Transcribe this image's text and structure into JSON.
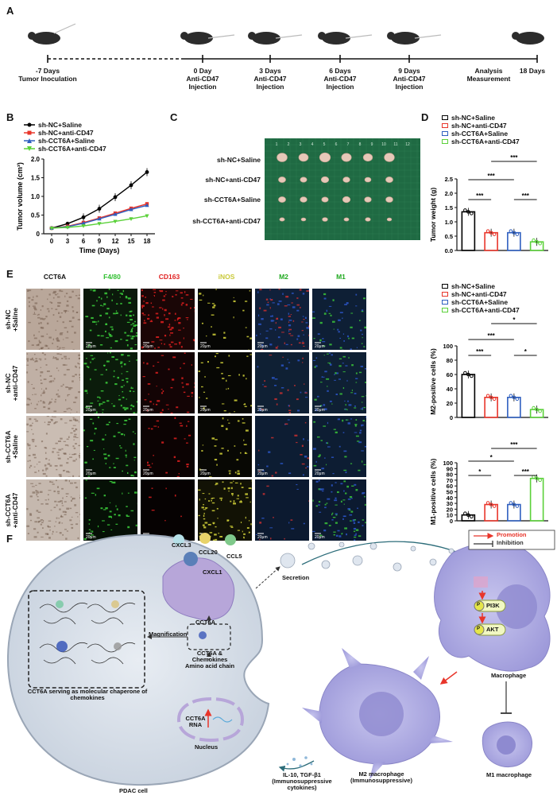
{
  "panel_letters": {
    "a": "A",
    "b": "B",
    "c": "C",
    "d": "D",
    "e": "E",
    "f": "F"
  },
  "timeline": {
    "events": [
      {
        "day": "-7 Days",
        "label": "Tumor Inoculation"
      },
      {
        "day": "0 Day",
        "label": "Anti-CD47 Injection"
      },
      {
        "day": "3 Days",
        "label": "Anti-CD47 Injection"
      },
      {
        "day": "6 Days",
        "label": "Anti-CD47 Injection"
      },
      {
        "day": "9 Days",
        "label": "Anti-CD47 Injection"
      },
      {
        "day": "Analysis",
        "label": "Measurement"
      },
      {
        "day": "18 Days",
        "label": ""
      }
    ]
  },
  "groups": [
    "sh-NC+Saline",
    "sh-NC+anti-CD47",
    "sh-CCT6A+Saline",
    "sh-CCT6A+anti-CD47"
  ],
  "colors": {
    "g1": "#000000",
    "g2": "#e8352a",
    "g3": "#2f5fbf",
    "g4": "#5bd13a"
  },
  "chart_data": [
    {
      "type": "line",
      "ylabel": "Tumor volume (cm³)",
      "xlabel": "Time (Days)",
      "x": [
        0,
        3,
        6,
        9,
        12,
        15,
        18
      ],
      "ylim": [
        0,
        2.0
      ],
      "yticks": [
        "0",
        "0.5",
        "1.0",
        "1.5",
        "2.0"
      ],
      "series": [
        {
          "name": "sh-NC+Saline",
          "values": [
            0.15,
            0.27,
            0.44,
            0.67,
            0.98,
            1.3,
            1.65
          ]
        },
        {
          "name": "sh-NC+anti-CD47",
          "values": [
            0.15,
            0.2,
            0.3,
            0.42,
            0.55,
            0.68,
            0.8
          ]
        },
        {
          "name": "sh-CCT6A+Saline",
          "values": [
            0.15,
            0.19,
            0.28,
            0.4,
            0.52,
            0.65,
            0.76
          ]
        },
        {
          "name": "sh-CCT6A+anti-CD47",
          "values": [
            0.15,
            0.17,
            0.21,
            0.27,
            0.33,
            0.4,
            0.48
          ]
        }
      ]
    },
    {
      "type": "bar",
      "ylabel": "Tumor weight (g)",
      "categories": [
        "sh-NC+Saline",
        "sh-NC+anti-CD47",
        "sh-CCT6A+Saline",
        "sh-CCT6A+anti-CD47"
      ],
      "values": [
        1.35,
        0.62,
        0.62,
        0.3
      ],
      "ylim": [
        0,
        2.5
      ],
      "yticks": [
        "0.0",
        "0.5",
        "1.0",
        "1.5",
        "2.0",
        "2.5"
      ],
      "significance": [
        "***",
        "***",
        "***",
        "***"
      ]
    },
    {
      "type": "bar",
      "ylabel": "M2-positive cells (%)",
      "categories": [
        "sh-NC+Saline",
        "sh-NC+anti-CD47",
        "sh-CCT6A+Saline",
        "sh-CCT6A+anti-CD47"
      ],
      "values": [
        60,
        28,
        28,
        11
      ],
      "ylim": [
        0,
        100
      ],
      "yticks": [
        "0",
        "20",
        "40",
        "60",
        "80",
        "100"
      ],
      "significance": [
        "***",
        "*",
        "***",
        "*"
      ]
    },
    {
      "type": "bar",
      "ylabel": "M1-positive cells (%)",
      "categories": [
        "sh-NC+Saline",
        "sh-NC+anti-CD47",
        "sh-CCT6A+Saline",
        "sh-CCT6A+anti-CD47"
      ],
      "values": [
        10,
        28,
        28,
        73
      ],
      "ylim": [
        0,
        100
      ],
      "yticks": [
        "0",
        "10",
        "20",
        "30",
        "40",
        "50",
        "60",
        "70",
        "80",
        "90",
        "100"
      ],
      "significance": [
        "***",
        "*",
        "*",
        "***"
      ]
    }
  ],
  "panel_c": {
    "rows": [
      "sh-NC+Saline",
      "sh-NC+anti-CD47",
      "sh-CCT6A+Saline",
      "sh-CCT6A+anti-CD47"
    ],
    "columns": [
      "1",
      "2",
      "3",
      "4",
      "5",
      "6",
      "7",
      "8",
      "9",
      "10",
      "11",
      "12"
    ]
  },
  "panel_e": {
    "columns": [
      "CCT6A",
      "F4/80",
      "CD163",
      "iNOS",
      "M2",
      "M1"
    ],
    "column_colors": [
      "#111111",
      "#2fbf2f",
      "#e02020",
      "#c9c93a",
      "#22aa22",
      "#22aa22"
    ],
    "rows": [
      [
        "sh-NC",
        "+Saline"
      ],
      [
        "sh-NC",
        "+anti-CD47"
      ],
      [
        "sh-CCT6A",
        "+Saline"
      ],
      [
        "sh-CCT6A",
        "+anti-CD47"
      ]
    ],
    "scale": "20μm"
  },
  "panel_f": {
    "legend": {
      "promotion": "Promotion",
      "inhibition": "Inhibition"
    },
    "chemokines": [
      "CXCL3",
      "CCL20",
      "CCL5",
      "CXCL1"
    ],
    "protein": "CCT6A",
    "magnification": "Magnification",
    "chain": "CCT6A & Chemokines Amino acid chain",
    "rna": "CCT6A RNA",
    "nucleus": "Nucleus",
    "chaperone": "CCT6A serving as molecular chaperone of chemokines",
    "secretion": "Secretion",
    "p": "P",
    "pi3k": "PI3K",
    "akt": "AKT",
    "macrophage": "Macrophage",
    "m2": "M2 macrophage (Immunosuppressive)",
    "m1": "M1 macrophage",
    "cytokines": "IL-10, TGF-β1 (Immunosuppressive cytokines)",
    "pdac": "PDAC cell"
  }
}
